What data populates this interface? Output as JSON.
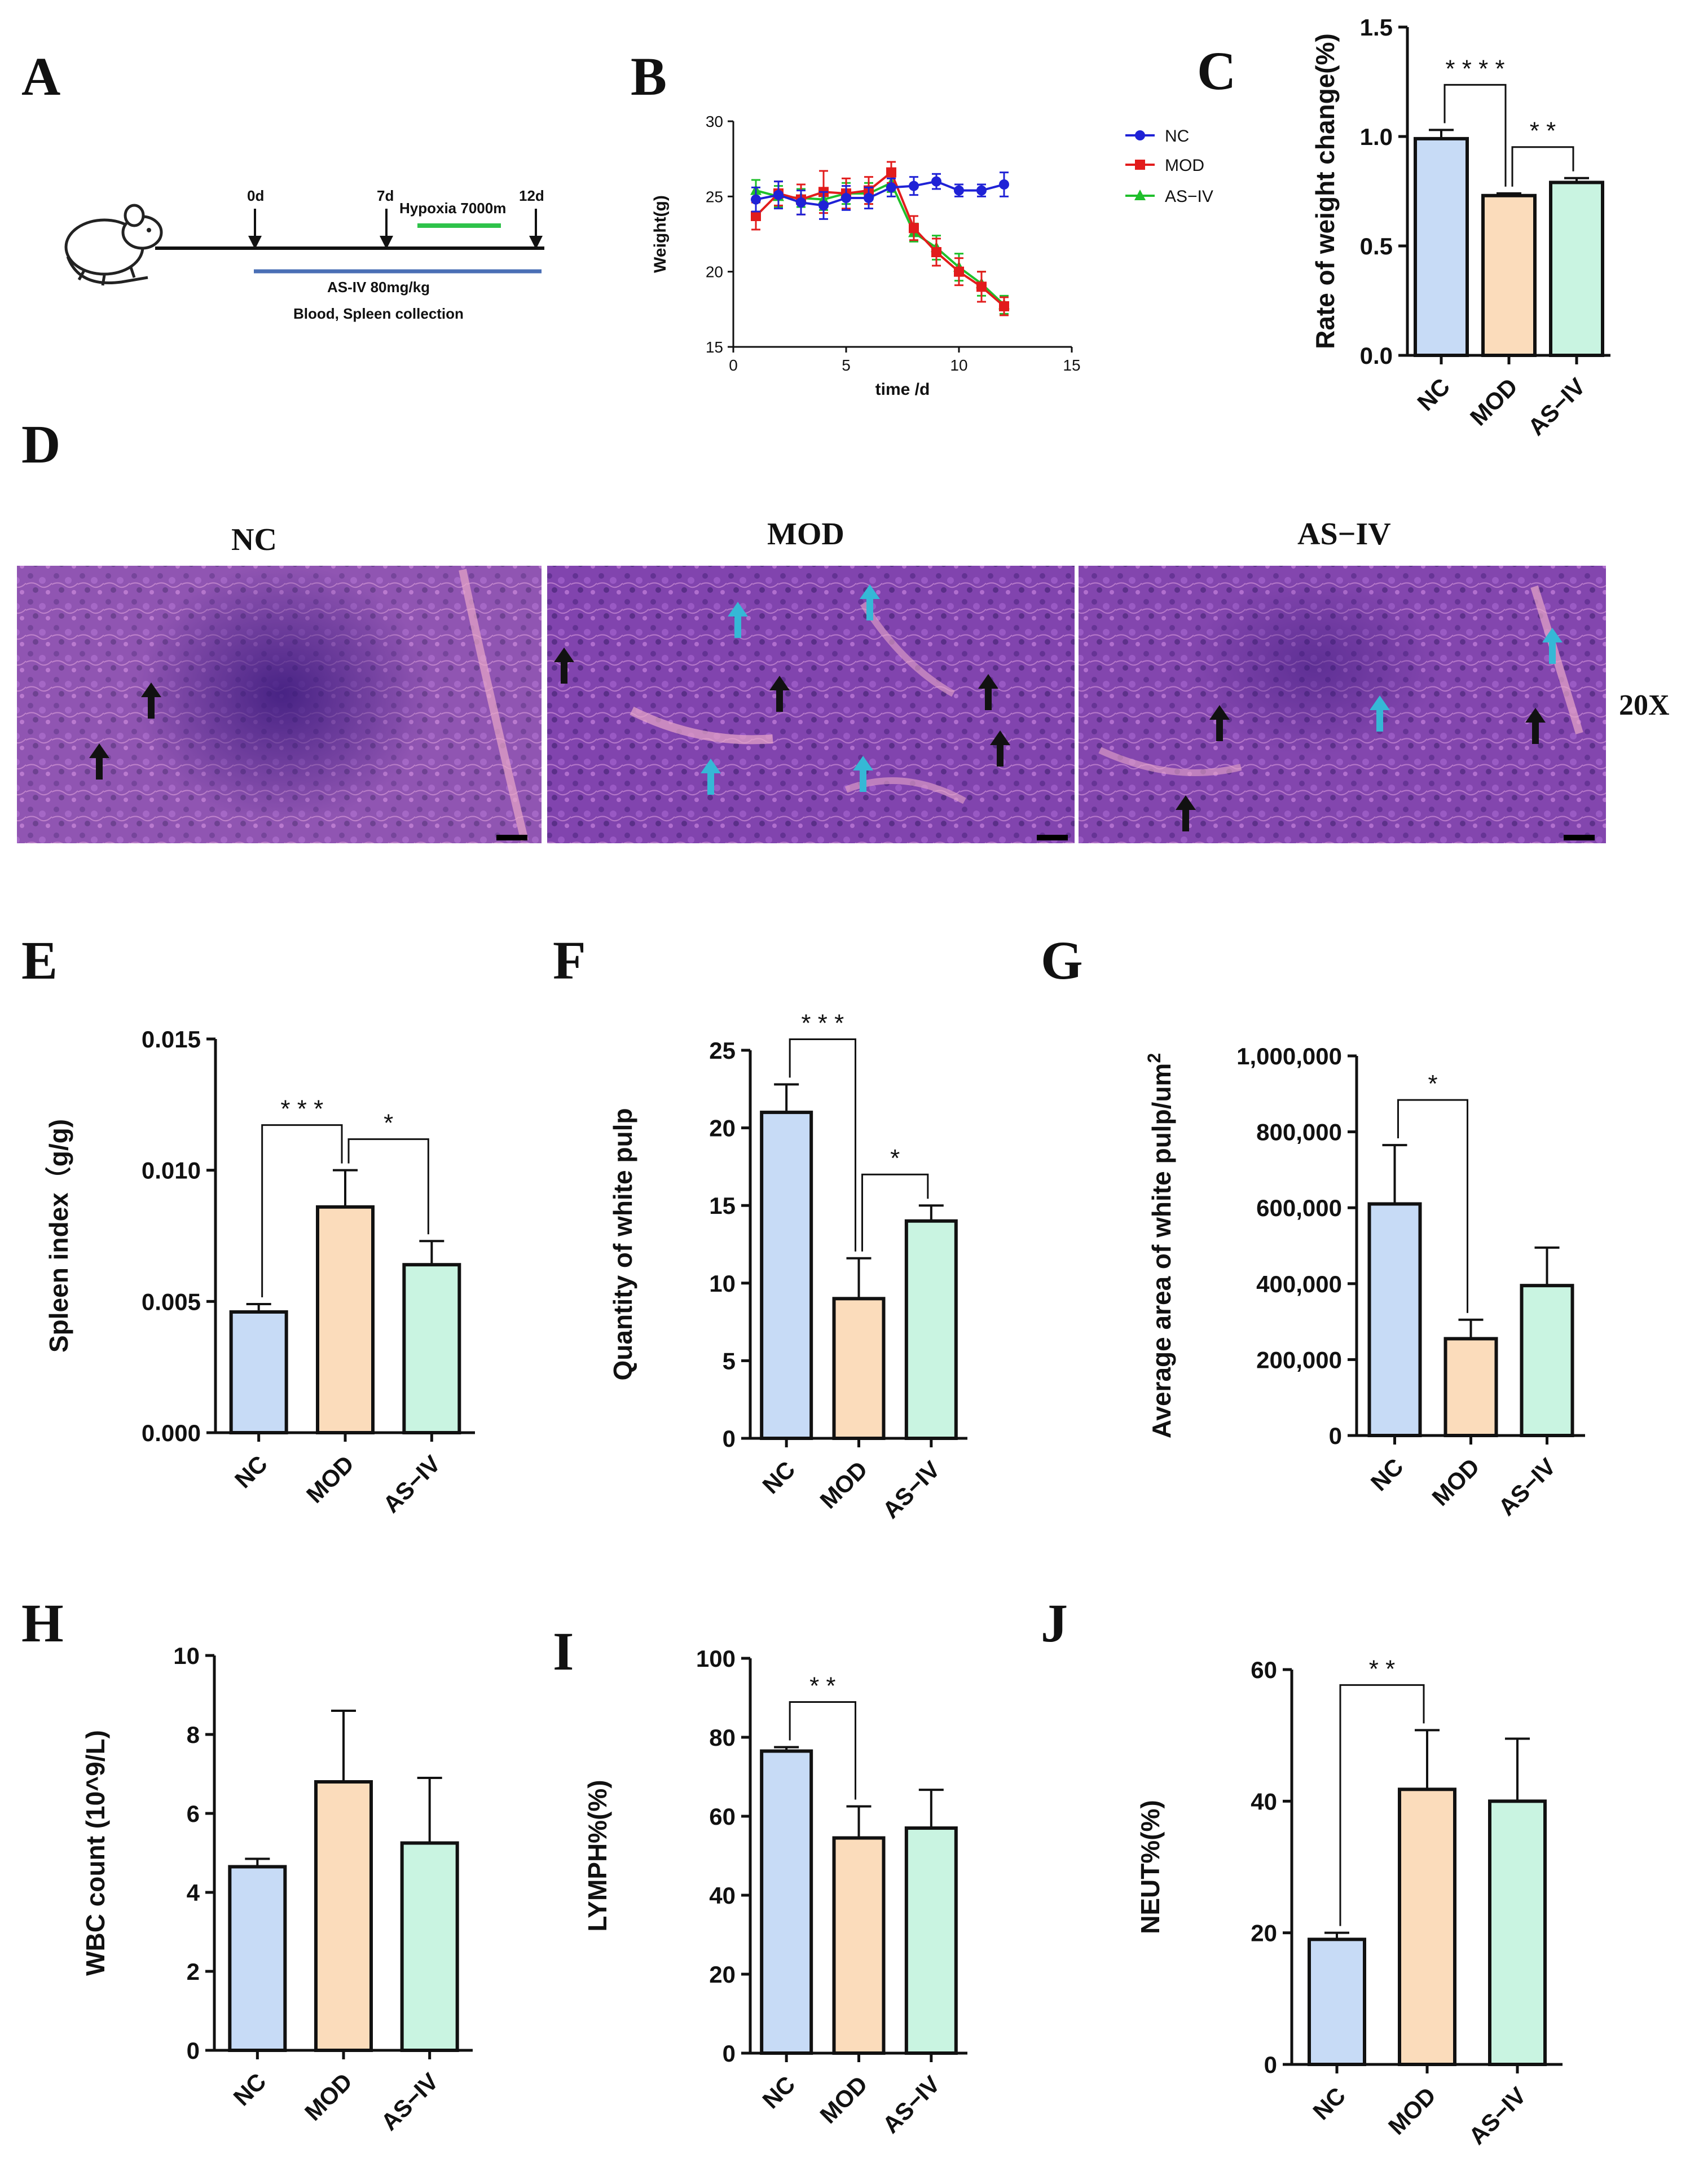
{
  "panels": {
    "A": {
      "label": "A",
      "timeline": {
        "days": [
          "0d",
          "7d",
          "12d"
        ],
        "hypoxia_label": "Hypoxia  7000m",
        "treatment_label": "AS-IV 80mg/kg",
        "collection_label": "Blood,  Spleen collection"
      }
    },
    "B": {
      "label": "B"
    },
    "C": {
      "label": "C"
    },
    "D": {
      "label": "D",
      "titles": [
        "NC",
        "MOD",
        "AS−IV"
      ],
      "magnification": "20X"
    },
    "E": {
      "label": "E"
    },
    "F": {
      "label": "F"
    },
    "G": {
      "label": "G"
    },
    "H": {
      "label": "H"
    },
    "I": {
      "label": "I"
    },
    "J": {
      "label": "J"
    }
  },
  "colors": {
    "NC": "#c7dbf6",
    "MOD": "#fbdcbb",
    "AS-IV": "#c9f4e1",
    "line_NC": "#1f22d6",
    "line_MOD": "#e21c1c",
    "line_ASIV": "#1fbf2b",
    "tissue": "#7a3fae",
    "arrow_black": "#111111",
    "arrow_cyan": "#35b8d6"
  },
  "chart_data": [
    {
      "id": "B",
      "type": "line",
      "title": "",
      "xlabel": "time /d",
      "ylabel": "Weight(g)",
      "xlim": [
        0,
        15
      ],
      "ylim": [
        15,
        30
      ],
      "xticks": [
        "0",
        "5",
        "10",
        "15"
      ],
      "yticks": [
        "15",
        "20",
        "25",
        "30"
      ],
      "legend": "top-right",
      "series": [
        {
          "name": "NC",
          "x": [
            1,
            2,
            3,
            4,
            5,
            6,
            7,
            8,
            9,
            10,
            11,
            12
          ],
          "values": [
            24.8,
            25.1,
            24.6,
            24.4,
            24.9,
            24.9,
            25.6,
            25.7,
            26.0,
            25.4,
            25.4,
            25.8
          ],
          "err": [
            0.8,
            0.9,
            0.8,
            0.9,
            0.8,
            0.7,
            0.6,
            0.6,
            0.5,
            0.4,
            0.4,
            0.8
          ]
        },
        {
          "name": "MOD",
          "x": [
            1,
            2,
            3,
            4,
            5,
            6,
            7,
            8,
            9,
            10,
            11,
            12
          ],
          "values": [
            23.7,
            25.2,
            24.8,
            25.3,
            25.2,
            25.4,
            26.6,
            22.9,
            21.3,
            20.0,
            19.0,
            17.7
          ],
          "err": [
            0.9,
            0.8,
            1.0,
            1.4,
            1.0,
            0.9,
            0.7,
            0.8,
            0.9,
            0.9,
            1.0,
            0.6
          ]
        },
        {
          "name": "AS−IV",
          "x": [
            1,
            2,
            3,
            4,
            5,
            6,
            7,
            8,
            9,
            10,
            11,
            12
          ],
          "values": [
            25.4,
            25.0,
            24.9,
            24.8,
            25.2,
            25.2,
            25.9,
            22.6,
            21.6,
            20.3,
            19.2,
            17.8
          ],
          "err": [
            0.7,
            0.7,
            0.6,
            0.7,
            0.7,
            0.7,
            0.6,
            0.6,
            0.8,
            0.9,
            0.8,
            0.6
          ]
        }
      ]
    },
    {
      "id": "C",
      "type": "bar",
      "title": "",
      "xlabel": "",
      "ylabel": "Rate of weight change(%)",
      "categories": [
        "NC",
        "MOD",
        "AS−IV"
      ],
      "values": [
        0.99,
        0.73,
        0.79
      ],
      "err": [
        0.04,
        0.01,
        0.02
      ],
      "ylim": [
        0,
        1.5
      ],
      "yticks": [
        "0.0",
        "0.5",
        "1.0",
        "1.5"
      ],
      "significance": [
        {
          "from": 0,
          "to": 1,
          "label": "* * * *"
        },
        {
          "from": 1,
          "to": 2,
          "label": "* *"
        }
      ]
    },
    {
      "id": "E",
      "type": "bar",
      "title": "",
      "xlabel": "",
      "ylabel": "Spleen index（g/g)",
      "categories": [
        "NC",
        "MOD",
        "AS−IV"
      ],
      "values": [
        0.0046,
        0.0086,
        0.0064
      ],
      "err": [
        0.0003,
        0.0014,
        0.0009
      ],
      "ylim": [
        0,
        0.015
      ],
      "yticks": [
        "0.000",
        "0.005",
        "0.010",
        "0.015"
      ],
      "significance": [
        {
          "from": 0,
          "to": 1,
          "label": "* * *"
        },
        {
          "from": 1,
          "to": 2,
          "label": "*"
        }
      ]
    },
    {
      "id": "F",
      "type": "bar",
      "title": "",
      "xlabel": "",
      "ylabel": "Quantity of white pulp",
      "categories": [
        "NC",
        "MOD",
        "AS−IV"
      ],
      "values": [
        21,
        9,
        14
      ],
      "err": [
        1.8,
        2.6,
        1.0
      ],
      "ylim": [
        0,
        25
      ],
      "yticks": [
        "0",
        "5",
        "10",
        "15",
        "20",
        "25"
      ],
      "significance": [
        {
          "from": 0,
          "to": 1,
          "label": "* * *"
        },
        {
          "from": 1,
          "to": 2,
          "label": "*"
        }
      ]
    },
    {
      "id": "G",
      "type": "bar",
      "title": "",
      "xlabel": "",
      "ylabel": "Average area of white pulp/um",
      "ylabel_sup": "2",
      "categories": [
        "NC",
        "MOD",
        "AS−IV"
      ],
      "values": [
        610000,
        255000,
        395000
      ],
      "err": [
        155000,
        50000,
        100000
      ],
      "ylim": [
        0,
        1000000
      ],
      "yticks": [
        "0",
        "200,000",
        "400,000",
        "600,000",
        "800,000",
        "1,000,000"
      ],
      "significance": [
        {
          "from": 0,
          "to": 1,
          "label": "*"
        }
      ]
    },
    {
      "id": "H",
      "type": "bar",
      "title": "",
      "xlabel": "",
      "ylabel": "WBC count (10^9/L)",
      "categories": [
        "NC",
        "MOD",
        "AS−IV"
      ],
      "values": [
        4.65,
        6.8,
        5.25
      ],
      "err": [
        0.2,
        1.8,
        1.65
      ],
      "ylim": [
        0,
        10
      ],
      "yticks": [
        "0",
        "2",
        "4",
        "6",
        "8",
        "10"
      ],
      "significance": []
    },
    {
      "id": "I",
      "type": "bar",
      "title": "",
      "xlabel": "",
      "ylabel": "LYMPH%(%)",
      "categories": [
        "NC",
        "MOD",
        "AS−IV"
      ],
      "values": [
        76.5,
        54.5,
        57
      ],
      "err": [
        1.0,
        8.0,
        9.7
      ],
      "ylim": [
        0,
        100
      ],
      "yticks": [
        "0",
        "20",
        "40",
        "60",
        "80",
        "100"
      ],
      "significance": [
        {
          "from": 0,
          "to": 1,
          "label": "* *"
        }
      ]
    },
    {
      "id": "J",
      "type": "bar",
      "title": "",
      "xlabel": "",
      "ylabel": "NEUT%(%)",
      "categories": [
        "NC",
        "MOD",
        "AS−IV"
      ],
      "values": [
        19,
        41.8,
        40
      ],
      "err": [
        1.0,
        9.0,
        9.5
      ],
      "ylim": [
        0,
        60
      ],
      "yticks": [
        "0",
        "20",
        "40",
        "60"
      ],
      "significance": [
        {
          "from": 0,
          "to": 1,
          "label": "* *"
        }
      ]
    }
  ]
}
